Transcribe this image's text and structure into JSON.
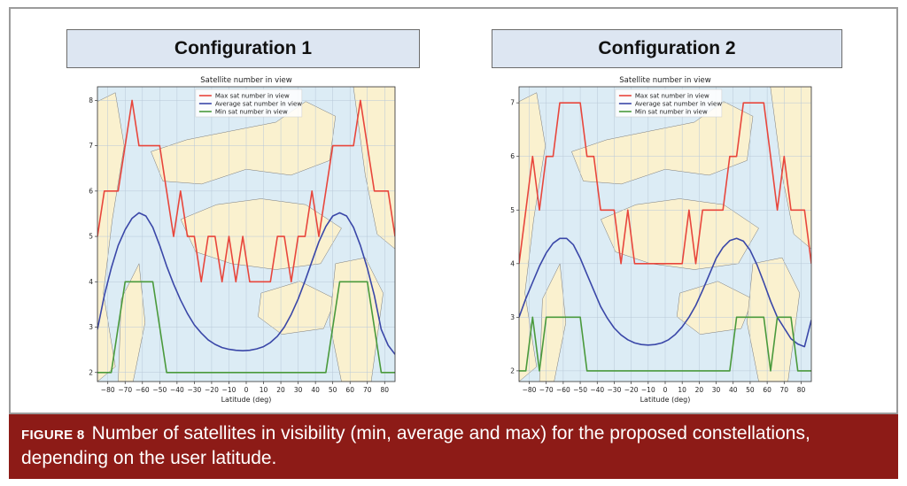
{
  "figure": {
    "config1_title": "Configuration 1",
    "config2_title": "Configuration 2",
    "caption_label": "FIGURE 8",
    "caption_text": "Number of satellites in visibility (min, average and max) for the proposed constellations, depending on the user latitude."
  },
  "colors": {
    "max": "#e8463c",
    "average": "#3a47a8",
    "min": "#4a9a3c",
    "ocean": "#dcecf5",
    "land": "#faf1cf",
    "border": "#7a7a7a",
    "caption_bg": "#8d1b17"
  },
  "chart_data": [
    {
      "type": "line",
      "title": "Satellite number in view",
      "xlabel": "Latitude (deg)",
      "ylabel": "",
      "xlim": [
        -86,
        86
      ],
      "ylim": [
        1.8,
        8.3
      ],
      "xticks": [
        -80,
        -70,
        -60,
        -50,
        -40,
        -30,
        -20,
        -10,
        0,
        10,
        20,
        30,
        40,
        50,
        60,
        70,
        80
      ],
      "yticks": [
        2,
        3,
        4,
        5,
        6,
        7,
        8
      ],
      "grid": true,
      "legend": "top-center",
      "x": [
        -86,
        -82,
        -78,
        -74,
        -70,
        -66,
        -62,
        -58,
        -54,
        -50,
        -46,
        -42,
        -38,
        -34,
        -30,
        -26,
        -22,
        -18,
        -14,
        -10,
        -6,
        -2,
        2,
        6,
        10,
        14,
        18,
        22,
        26,
        30,
        34,
        38,
        42,
        46,
        50,
        54,
        58,
        62,
        66,
        70,
        74,
        78,
        82,
        86
      ],
      "series": [
        {
          "name": "Max sat number in view",
          "values": [
            5,
            6,
            6,
            6,
            7,
            8,
            7,
            7,
            7,
            7,
            6,
            5,
            6,
            5,
            5,
            4,
            5,
            5,
            4,
            5,
            4,
            5,
            4,
            4,
            4,
            4,
            5,
            5,
            4,
            5,
            5,
            6,
            5,
            6,
            7,
            7,
            7,
            7,
            8,
            7,
            6,
            6,
            6,
            5
          ]
        },
        {
          "name": "Average sat number in view",
          "values": [
            2.95,
            3.7,
            4.3,
            4.8,
            5.15,
            5.4,
            5.52,
            5.45,
            5.2,
            4.8,
            4.35,
            3.95,
            3.6,
            3.3,
            3.05,
            2.87,
            2.72,
            2.62,
            2.55,
            2.51,
            2.49,
            2.48,
            2.49,
            2.52,
            2.57,
            2.66,
            2.8,
            3.0,
            3.28,
            3.62,
            4.02,
            4.45,
            4.88,
            5.22,
            5.45,
            5.52,
            5.45,
            5.2,
            4.8,
            4.3,
            3.7,
            2.95,
            2.6,
            2.4
          ]
        },
        {
          "name": "Min sat number in view",
          "values": [
            2,
            2,
            2,
            3,
            4,
            4,
            4,
            4,
            4,
            3,
            2,
            2,
            2,
            2,
            2,
            2,
            2,
            2,
            2,
            2,
            2,
            2,
            2,
            2,
            2,
            2,
            2,
            2,
            2,
            2,
            2,
            2,
            2,
            2,
            3,
            4,
            4,
            4,
            4,
            4,
            3,
            2,
            2,
            2
          ]
        }
      ]
    },
    {
      "type": "line",
      "title": "Satellite number in view",
      "xlabel": "Latitude (deg)",
      "ylabel": "",
      "xlim": [
        -86,
        86
      ],
      "ylim": [
        1.8,
        7.3
      ],
      "xticks": [
        -80,
        -70,
        -60,
        -50,
        -40,
        -30,
        -20,
        -10,
        0,
        10,
        20,
        30,
        40,
        50,
        60,
        70,
        80
      ],
      "yticks": [
        2,
        3,
        4,
        5,
        6,
        7
      ],
      "grid": true,
      "legend": "top-center",
      "x": [
        -86,
        -82,
        -78,
        -74,
        -70,
        -66,
        -62,
        -58,
        -54,
        -50,
        -46,
        -42,
        -38,
        -34,
        -30,
        -26,
        -22,
        -18,
        -14,
        -10,
        -6,
        -2,
        2,
        6,
        10,
        14,
        18,
        22,
        26,
        30,
        34,
        38,
        42,
        46,
        50,
        54,
        58,
        62,
        66,
        70,
        74,
        78,
        82,
        86
      ],
      "series": [
        {
          "name": "Max sat number in view",
          "values": [
            4,
            5,
            6,
            5,
            6,
            6,
            7,
            7,
            7,
            7,
            6,
            6,
            5,
            5,
            5,
            4,
            5,
            4,
            4,
            4,
            4,
            4,
            4,
            4,
            4,
            5,
            4,
            5,
            5,
            5,
            5,
            6,
            6,
            7,
            7,
            7,
            7,
            6,
            5,
            6,
            5,
            5,
            5,
            4
          ]
        },
        {
          "name": "Average sat number in view",
          "values": [
            3.0,
            3.35,
            3.65,
            3.95,
            4.2,
            4.38,
            4.47,
            4.47,
            4.35,
            4.1,
            3.8,
            3.5,
            3.2,
            2.98,
            2.8,
            2.67,
            2.58,
            2.52,
            2.49,
            2.48,
            2.49,
            2.52,
            2.58,
            2.68,
            2.82,
            3.0,
            3.22,
            3.5,
            3.8,
            4.1,
            4.3,
            4.43,
            4.47,
            4.42,
            4.25,
            3.98,
            3.65,
            3.3,
            3.0,
            2.8,
            2.6,
            2.5,
            2.45,
            2.95
          ]
        },
        {
          "name": "Min sat number in view",
          "values": [
            2,
            2,
            3,
            2,
            3,
            3,
            3,
            3,
            3,
            3,
            2,
            2,
            2,
            2,
            2,
            2,
            2,
            2,
            2,
            2,
            2,
            2,
            2,
            2,
            2,
            2,
            2,
            2,
            2,
            2,
            2,
            2,
            3,
            3,
            3,
            3,
            3,
            2,
            3,
            3,
            3,
            2,
            2,
            2
          ]
        }
      ]
    }
  ]
}
